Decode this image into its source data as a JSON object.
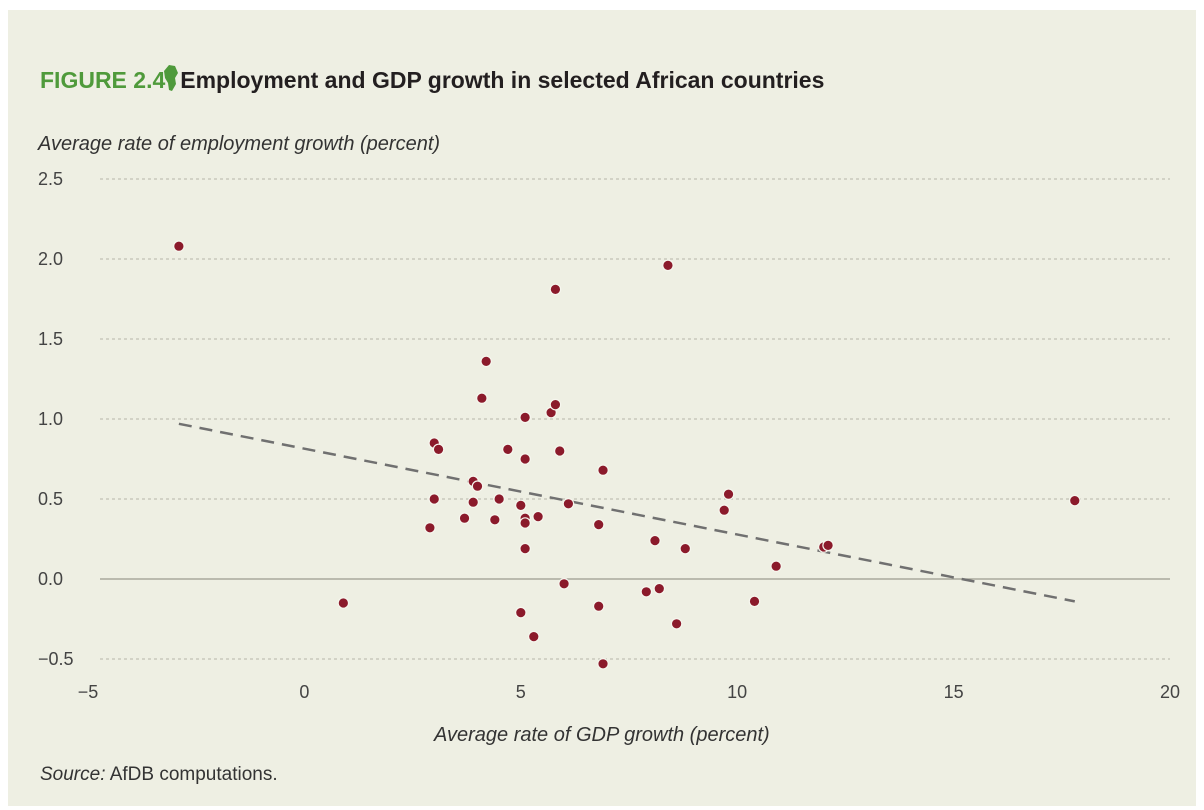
{
  "figure": {
    "number": "FIGURE 2.4",
    "title": "Employment and GDP growth in selected African countries"
  },
  "source": {
    "label": "Source:",
    "text": "AfDB computations."
  },
  "colors": {
    "background": "#eeefe3",
    "points": "#8b1a2b",
    "trend": "#707070",
    "grid": "#b5b5a8",
    "accent": "#4f9a3b"
  },
  "chart_data": {
    "type": "scatter",
    "title": "Employment and GDP growth in selected African countries",
    "xlabel": "Average rate of GDP growth (percent)",
    "ylabel": "Average rate of employment growth (percent)",
    "xlim": [
      -5,
      20
    ],
    "ylim": [
      -0.5,
      2.5
    ],
    "xticks": [
      -5,
      0,
      5,
      10,
      15,
      20
    ],
    "yticks": [
      2.5,
      2.0,
      1.5,
      1.0,
      0.5,
      0.0,
      -0.5
    ],
    "xtick_labels": [
      "−5",
      "0",
      "5",
      "10",
      "15",
      "20"
    ],
    "ytick_labels": [
      "2.5",
      "2.0",
      "1.5",
      "1.0",
      "0.5",
      "0.0",
      "−0.5"
    ],
    "grid": "horizontal dashed",
    "trendline": {
      "style": "dashed",
      "from": [
        -2.9,
        0.97
      ],
      "to": [
        17.8,
        -0.14
      ]
    },
    "points": [
      [
        -2.9,
        2.08
      ],
      [
        0.9,
        -0.15
      ],
      [
        2.9,
        0.32
      ],
      [
        3.0,
        0.5
      ],
      [
        3.0,
        0.85
      ],
      [
        3.1,
        0.81
      ],
      [
        3.7,
        0.38
      ],
      [
        3.9,
        0.48
      ],
      [
        3.9,
        0.61
      ],
      [
        4.0,
        0.58
      ],
      [
        4.1,
        1.13
      ],
      [
        4.2,
        1.36
      ],
      [
        4.4,
        0.37
      ],
      [
        4.5,
        0.5
      ],
      [
        4.7,
        0.81
      ],
      [
        5.0,
        0.46
      ],
      [
        5.0,
        -0.21
      ],
      [
        5.1,
        0.19
      ],
      [
        5.1,
        0.38
      ],
      [
        5.1,
        0.35
      ],
      [
        5.1,
        0.75
      ],
      [
        5.1,
        1.01
      ],
      [
        5.3,
        -0.36
      ],
      [
        5.4,
        0.39
      ],
      [
        5.7,
        1.04
      ],
      [
        5.8,
        1.09
      ],
      [
        5.8,
        1.81
      ],
      [
        5.9,
        0.8
      ],
      [
        6.0,
        -0.03
      ],
      [
        6.1,
        0.47
      ],
      [
        6.8,
        -0.17
      ],
      [
        6.8,
        0.34
      ],
      [
        6.9,
        0.68
      ],
      [
        6.9,
        -0.53
      ],
      [
        7.9,
        -0.08
      ],
      [
        8.1,
        0.24
      ],
      [
        8.2,
        -0.06
      ],
      [
        8.4,
        1.96
      ],
      [
        8.6,
        -0.28
      ],
      [
        8.8,
        0.19
      ],
      [
        9.7,
        0.43
      ],
      [
        9.8,
        0.53
      ],
      [
        10.4,
        -0.14
      ],
      [
        10.9,
        0.08
      ],
      [
        12.0,
        0.2
      ],
      [
        12.1,
        0.21
      ],
      [
        17.8,
        0.49
      ]
    ]
  }
}
